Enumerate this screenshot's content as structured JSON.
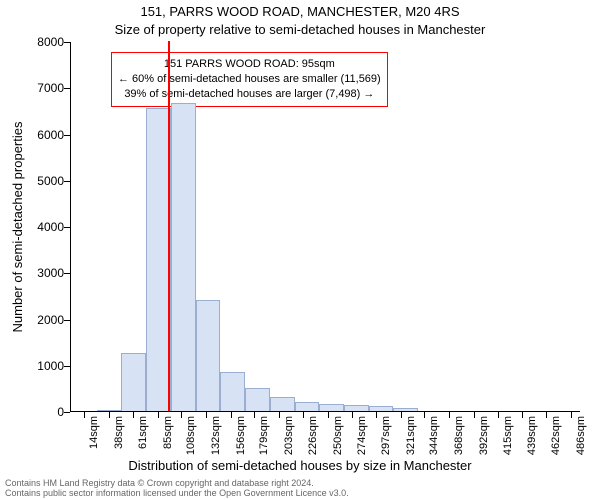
{
  "chart": {
    "type": "histogram",
    "title_main": "151, PARRS WOOD ROAD, MANCHESTER, M20 4RS",
    "title_sub": "Size of property relative to semi-detached houses in Manchester",
    "y_axis_title": "Number of semi-detached properties",
    "x_axis_title": "Distribution of semi-detached houses by size in Manchester",
    "background_color": "#ffffff",
    "bar_fill": "#d7e2f4",
    "bar_stroke": "#9aaed0",
    "marker_color": "#ff0000",
    "marker_x_value": 95,
    "infobox": {
      "border_color": "#ff0000",
      "line1": "151 PARRS WOOD ROAD: 95sqm",
      "line2": "← 60% of semi-detached houses are smaller (11,569)",
      "line3": "39% of semi-detached houses are larger (7,498) →"
    },
    "ylim": [
      0,
      8000
    ],
    "yticks": [
      0,
      1000,
      2000,
      3000,
      4000,
      5000,
      6000,
      7000,
      8000
    ],
    "xlim": [
      0,
      495
    ],
    "xticks": [
      14,
      38,
      61,
      85,
      108,
      132,
      156,
      179,
      203,
      226,
      250,
      274,
      297,
      321,
      344,
      368,
      392,
      415,
      439,
      462,
      486
    ],
    "xtick_suffix": "sqm",
    "bars": [
      {
        "x_start": 25,
        "x_end": 49,
        "value": 30
      },
      {
        "x_start": 49,
        "x_end": 73,
        "value": 1250
      },
      {
        "x_start": 73,
        "x_end": 97,
        "value": 6550
      },
      {
        "x_start": 97,
        "x_end": 121,
        "value": 6650
      },
      {
        "x_start": 121,
        "x_end": 145,
        "value": 2400
      },
      {
        "x_start": 145,
        "x_end": 169,
        "value": 850
      },
      {
        "x_start": 169,
        "x_end": 193,
        "value": 500
      },
      {
        "x_start": 193,
        "x_end": 217,
        "value": 300
      },
      {
        "x_start": 217,
        "x_end": 241,
        "value": 200
      },
      {
        "x_start": 241,
        "x_end": 265,
        "value": 150
      },
      {
        "x_start": 265,
        "x_end": 289,
        "value": 130
      },
      {
        "x_start": 289,
        "x_end": 313,
        "value": 100
      },
      {
        "x_start": 313,
        "x_end": 337,
        "value": 60
      }
    ],
    "footer_line1": "Contains HM Land Registry data © Crown copyright and database right 2024.",
    "footer_line2": "Contains public sector information licensed under the Open Government Licence v3.0."
  }
}
